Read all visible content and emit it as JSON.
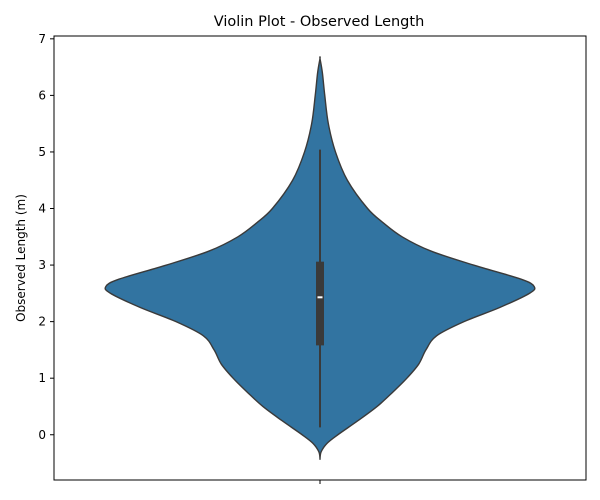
{
  "chart_data": {
    "type": "violin",
    "title": "Violin Plot - Observed Length",
    "xlabel": "",
    "ylabel": "Observed Length (m)",
    "ylim": [
      -0.8,
      7.05
    ],
    "yticks": [
      0,
      1,
      2,
      3,
      4,
      5,
      6,
      7
    ],
    "grid": false,
    "legend": "none",
    "color": "#3274a1",
    "edge_color": "#3a3a3a",
    "categories": [
      ""
    ],
    "violin": {
      "profile": [
        {
          "y": -0.42,
          "half_width": 0.0
        },
        {
          "y": -0.3,
          "half_width": 0.01
        },
        {
          "y": -0.15,
          "half_width": 0.06
        },
        {
          "y": 0.0,
          "half_width": 0.15
        },
        {
          "y": 0.25,
          "half_width": 0.32
        },
        {
          "y": 0.5,
          "half_width": 0.48
        },
        {
          "y": 0.75,
          "half_width": 0.61
        },
        {
          "y": 1.0,
          "half_width": 0.73
        },
        {
          "y": 1.25,
          "half_width": 0.83
        },
        {
          "y": 1.5,
          "half_width": 0.89
        },
        {
          "y": 1.75,
          "half_width": 0.98
        },
        {
          "y": 2.0,
          "half_width": 1.21
        },
        {
          "y": 2.25,
          "half_width": 1.51
        },
        {
          "y": 2.5,
          "half_width": 1.76
        },
        {
          "y": 2.62,
          "half_width": 1.8
        },
        {
          "y": 2.75,
          "half_width": 1.69
        },
        {
          "y": 3.0,
          "half_width": 1.29
        },
        {
          "y": 3.25,
          "half_width": 0.93
        },
        {
          "y": 3.5,
          "half_width": 0.69
        },
        {
          "y": 3.75,
          "half_width": 0.53
        },
        {
          "y": 4.0,
          "half_width": 0.4
        },
        {
          "y": 4.5,
          "half_width": 0.23
        },
        {
          "y": 5.0,
          "half_width": 0.13
        },
        {
          "y": 5.5,
          "half_width": 0.07
        },
        {
          "y": 6.0,
          "half_width": 0.04
        },
        {
          "y": 6.4,
          "half_width": 0.02
        },
        {
          "y": 6.65,
          "half_width": 0.0
        }
      ],
      "q1": 1.58,
      "median": 2.43,
      "q3": 3.06,
      "whisker_low": 0.13,
      "whisker_high": 5.04
    }
  }
}
